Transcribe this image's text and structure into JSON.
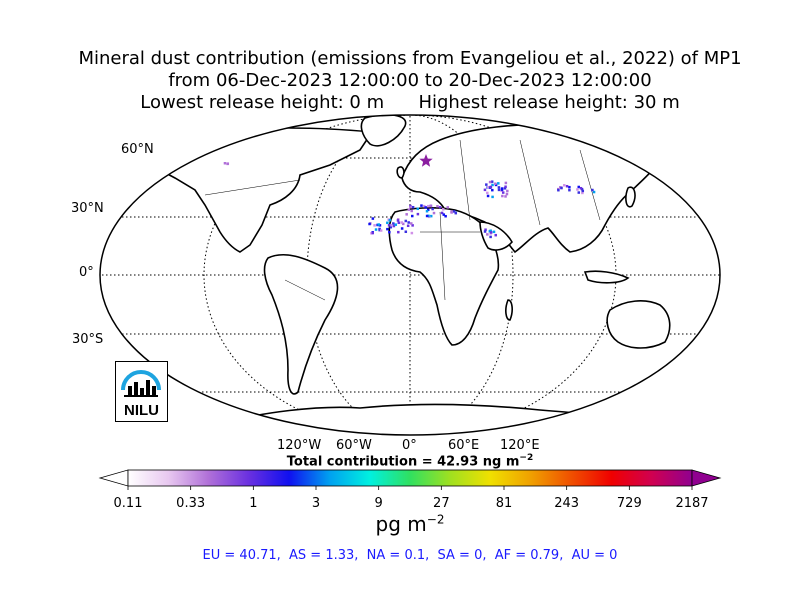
{
  "title": {
    "line1": "Mineral dust contribution (emissions from Evangeliou et al., 2022) of MP1",
    "line2": "from 06-Dec-2023 12:00:00 to 20-Dec-2023 12:00:00",
    "line3": "Lowest release height: 0 m      Highest release height: 30 m"
  },
  "map": {
    "lat_labels": [
      "60°N",
      "30°N",
      "0°",
      "30°S"
    ],
    "lon_labels": [
      "120°W",
      "60°W",
      "0°",
      "60°E",
      "120°E"
    ],
    "logo_text": "NILU",
    "logo_color": "#1ea4e0",
    "release_marker_color": "#8b1fa0"
  },
  "total": {
    "prefix": "Total contribution = 42.93 ng m",
    "exponent": "−2"
  },
  "colorbar": {
    "ticks": [
      "0.11",
      "0.33",
      "1",
      "3",
      "9",
      "27",
      "81",
      "243",
      "729",
      "2187"
    ],
    "colors": [
      "#ffffff",
      "#e8c8f0",
      "#b070d8",
      "#6a30e0",
      "#1010f0",
      "#00a0f0",
      "#00f0e0",
      "#30e060",
      "#a0e020",
      "#f0e000",
      "#f0a000",
      "#f05000",
      "#f00000",
      "#d00050",
      "#900090"
    ],
    "unit_base": "pg m",
    "unit_exp": "−2"
  },
  "regions": "EU = 40.71,  AS = 1.33,  NA = 0.1,  SA = 0,  AF = 0.79,  AU = 0"
}
